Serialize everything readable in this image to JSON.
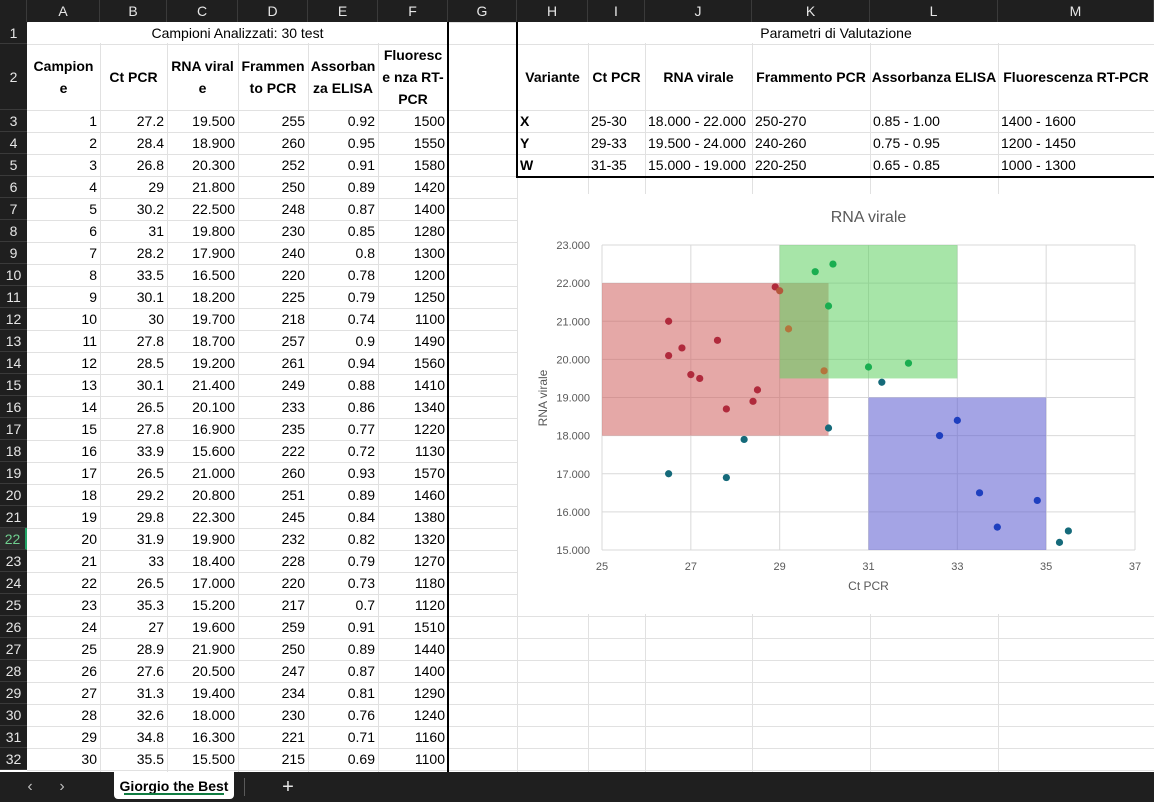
{
  "columns": [
    "A",
    "B",
    "C",
    "D",
    "E",
    "F",
    "G",
    "H",
    "I",
    "J",
    "K",
    "L",
    "M"
  ],
  "rows": [
    "1",
    "2",
    "3",
    "4",
    "5",
    "6",
    "7",
    "8",
    "9",
    "10",
    "11",
    "12",
    "13",
    "14",
    "15",
    "16",
    "17",
    "18",
    "19",
    "20",
    "21",
    "22",
    "23",
    "24",
    "25",
    "26",
    "27",
    "28",
    "29",
    "30",
    "31",
    "32"
  ],
  "selected_row": "22",
  "left_title": "Campioni Analizzati: 30 test",
  "left_headers": [
    "Campion e",
    "Ct PCR",
    "RNA virale",
    "Frammen to PCR",
    "Assorban za ELISA",
    "Fluoresce nza RT-PCR"
  ],
  "samples": [
    [
      "1",
      "27.2",
      "19.500",
      "255",
      "0.92",
      "1500"
    ],
    [
      "2",
      "28.4",
      "18.900",
      "260",
      "0.95",
      "1550"
    ],
    [
      "3",
      "26.8",
      "20.300",
      "252",
      "0.91",
      "1580"
    ],
    [
      "4",
      "29",
      "21.800",
      "250",
      "0.89",
      "1420"
    ],
    [
      "5",
      "30.2",
      "22.500",
      "248",
      "0.87",
      "1400"
    ],
    [
      "6",
      "31",
      "19.800",
      "230",
      "0.85",
      "1280"
    ],
    [
      "7",
      "28.2",
      "17.900",
      "240",
      "0.8",
      "1300"
    ],
    [
      "8",
      "33.5",
      "16.500",
      "220",
      "0.78",
      "1200"
    ],
    [
      "9",
      "30.1",
      "18.200",
      "225",
      "0.79",
      "1250"
    ],
    [
      "10",
      "30",
      "19.700",
      "218",
      "0.74",
      "1100"
    ],
    [
      "11",
      "27.8",
      "18.700",
      "257",
      "0.9",
      "1490"
    ],
    [
      "12",
      "28.5",
      "19.200",
      "261",
      "0.94",
      "1560"
    ],
    [
      "13",
      "30.1",
      "21.400",
      "249",
      "0.88",
      "1410"
    ],
    [
      "14",
      "26.5",
      "20.100",
      "233",
      "0.86",
      "1340"
    ],
    [
      "15",
      "27.8",
      "16.900",
      "235",
      "0.77",
      "1220"
    ],
    [
      "16",
      "33.9",
      "15.600",
      "222",
      "0.72",
      "1130"
    ],
    [
      "17",
      "26.5",
      "21.000",
      "260",
      "0.93",
      "1570"
    ],
    [
      "18",
      "29.2",
      "20.800",
      "251",
      "0.89",
      "1460"
    ],
    [
      "19",
      "29.8",
      "22.300",
      "245",
      "0.84",
      "1380"
    ],
    [
      "20",
      "31.9",
      "19.900",
      "232",
      "0.82",
      "1320"
    ],
    [
      "21",
      "33",
      "18.400",
      "228",
      "0.79",
      "1270"
    ],
    [
      "22",
      "26.5",
      "17.000",
      "220",
      "0.73",
      "1180"
    ],
    [
      "23",
      "35.3",
      "15.200",
      "217",
      "0.7",
      "1120"
    ],
    [
      "24",
      "27",
      "19.600",
      "259",
      "0.91",
      "1510"
    ],
    [
      "25",
      "28.9",
      "21.900",
      "250",
      "0.89",
      "1440"
    ],
    [
      "26",
      "27.6",
      "20.500",
      "247",
      "0.87",
      "1400"
    ],
    [
      "27",
      "31.3",
      "19.400",
      "234",
      "0.81",
      "1290"
    ],
    [
      "28",
      "32.6",
      "18.000",
      "230",
      "0.76",
      "1240"
    ],
    [
      "29",
      "34.8",
      "16.300",
      "221",
      "0.71",
      "1160"
    ],
    [
      "30",
      "35.5",
      "15.500",
      "215",
      "0.69",
      "1100"
    ]
  ],
  "right_title": "Parametri di Valutazione",
  "right_headers": [
    "Variante",
    "Ct PCR",
    "RNA virale",
    "Frammento PCR",
    "Assorbanza ELISA",
    "Fluorescenza RT-PCR"
  ],
  "variants": [
    [
      "X",
      "25-30",
      "18.000 - 22.000",
      "250-270",
      "0.85 - 1.00",
      "1400 - 1600"
    ],
    [
      "Y",
      "29-33",
      "19.500 - 24.000",
      "240-260",
      "0.75 - 0.95",
      "1200 - 1450"
    ],
    [
      "W",
      "31-35",
      "15.000 - 19.000",
      "220-250",
      "0.65 - 0.85",
      "1000 - 1300"
    ]
  ],
  "chart_data": {
    "type": "scatter",
    "title": "RNA virale",
    "xlabel": "Ct PCR",
    "ylabel": "RNA virale",
    "xlim": [
      25,
      37
    ],
    "ylim": [
      15000,
      23000
    ],
    "xticks": [
      "25",
      "27",
      "29",
      "31",
      "33",
      "35",
      "37"
    ],
    "yticks": [
      "15.000",
      "16.000",
      "17.000",
      "18.000",
      "19.000",
      "20.000",
      "21.000",
      "22.000",
      "23.000"
    ],
    "grid": true,
    "regions": [
      {
        "x": [
          25,
          30.1
        ],
        "y": [
          18000,
          22000
        ],
        "color": "#d0605f"
      },
      {
        "x": [
          29,
          33
        ],
        "y": [
          19500,
          23000
        ],
        "color": "#5fcf60"
      },
      {
        "x": [
          31,
          35
        ],
        "y": [
          15000,
          19000
        ],
        "color": "#5a5acf"
      }
    ],
    "points": [
      {
        "x": 26.5,
        "y": 21000,
        "color": "#b02a3c"
      },
      {
        "x": 26.5,
        "y": 20100,
        "color": "#b02a3c"
      },
      {
        "x": 26.8,
        "y": 20300,
        "color": "#b02a3c"
      },
      {
        "x": 27,
        "y": 19600,
        "color": "#b02a3c"
      },
      {
        "x": 27.2,
        "y": 19500,
        "color": "#b02a3c"
      },
      {
        "x": 27.6,
        "y": 20500,
        "color": "#b02a3c"
      },
      {
        "x": 27.8,
        "y": 18700,
        "color": "#b02a3c"
      },
      {
        "x": 28.4,
        "y": 18900,
        "color": "#b02a3c"
      },
      {
        "x": 28.5,
        "y": 19200,
        "color": "#b02a3c"
      },
      {
        "x": 28.9,
        "y": 21900,
        "color": "#b02a3c"
      },
      {
        "x": 29,
        "y": 21800,
        "color": "#b4573c"
      },
      {
        "x": 29.2,
        "y": 20800,
        "color": "#b4753c"
      },
      {
        "x": 30,
        "y": 19700,
        "color": "#b4753c"
      },
      {
        "x": 29.8,
        "y": 22300,
        "color": "#1aae50"
      },
      {
        "x": 30.2,
        "y": 22500,
        "color": "#1aae50"
      },
      {
        "x": 30.1,
        "y": 21400,
        "color": "#1aae50"
      },
      {
        "x": 31,
        "y": 19800,
        "color": "#1aae50"
      },
      {
        "x": 31.9,
        "y": 19900,
        "color": "#1aae50"
      },
      {
        "x": 31.3,
        "y": 19400,
        "color": "#156a7a"
      },
      {
        "x": 30.1,
        "y": 18200,
        "color": "#156a7a"
      },
      {
        "x": 28.2,
        "y": 17900,
        "color": "#156a7a"
      },
      {
        "x": 26.5,
        "y": 17000,
        "color": "#156a7a"
      },
      {
        "x": 27.8,
        "y": 16900,
        "color": "#156a7a"
      },
      {
        "x": 32.6,
        "y": 18000,
        "color": "#1e3fbf"
      },
      {
        "x": 33,
        "y": 18400,
        "color": "#1e3fbf"
      },
      {
        "x": 33.5,
        "y": 16500,
        "color": "#1e3fbf"
      },
      {
        "x": 33.9,
        "y": 15600,
        "color": "#1e3fbf"
      },
      {
        "x": 34.8,
        "y": 16300,
        "color": "#1e3fbf"
      },
      {
        "x": 35.3,
        "y": 15200,
        "color": "#156a7a"
      },
      {
        "x": 35.5,
        "y": 15500,
        "color": "#156a7a"
      }
    ]
  },
  "tabbar": {
    "prev_icon": "‹",
    "next_icon": "›",
    "sheet_name": "Giorgio the Best",
    "add_icon": "+"
  }
}
